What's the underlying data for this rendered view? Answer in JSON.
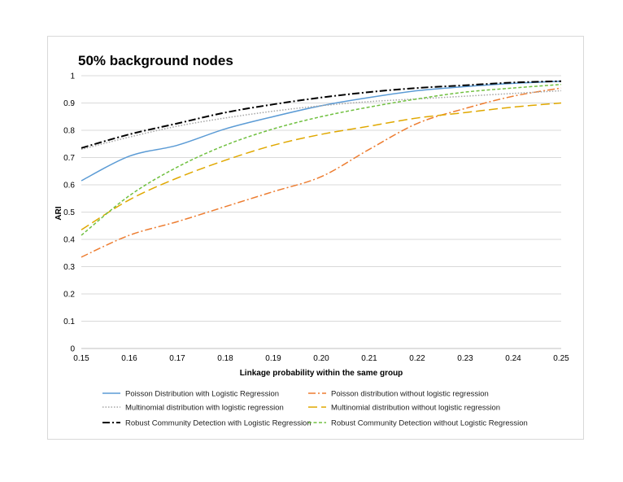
{
  "chart_data": {
    "type": "line",
    "title": "50% background nodes",
    "xlabel": "Linkage probability within the same group",
    "ylabel": "ARI",
    "xlim": [
      0.15,
      0.25
    ],
    "ylim": [
      0,
      1
    ],
    "x": [
      0.15,
      0.16,
      0.17,
      0.18,
      0.19,
      0.2,
      0.21,
      0.22,
      0.23,
      0.24,
      0.25
    ],
    "xticks": [
      "0.15",
      "0.16",
      "0.17",
      "0.18",
      "0.19",
      "0.20",
      "0.21",
      "0.22",
      "0.23",
      "0.24",
      "0.25"
    ],
    "yticks": [
      "0",
      "0.1",
      "0.2",
      "0.3",
      "0.4",
      "0.5",
      "0.6",
      "0.7",
      "0.8",
      "0.9",
      "1"
    ],
    "grid": true,
    "legend_position": "bottom",
    "series": [
      {
        "name": "Poisson Distribution with Logistic Regression",
        "color": "#5b9bd5",
        "dash": "solid",
        "values": [
          0.615,
          0.705,
          0.745,
          0.805,
          0.85,
          0.89,
          0.92,
          0.945,
          0.96,
          0.972,
          0.98
        ]
      },
      {
        "name": "Poisson distribution without logistic regression",
        "color": "#ed7d31",
        "dash": "dashdot",
        "values": [
          0.335,
          0.415,
          0.465,
          0.52,
          0.575,
          0.63,
          0.73,
          0.825,
          0.88,
          0.925,
          0.955
        ]
      },
      {
        "name": "Multinomial distribution with logistic regression",
        "color": "#a5a5a5",
        "dash": "dotted",
        "values": [
          0.73,
          0.775,
          0.815,
          0.845,
          0.87,
          0.89,
          0.905,
          0.915,
          0.925,
          0.935,
          0.945
        ]
      },
      {
        "name": "Multinomial distribution without logistic regression",
        "color": "#e0a800",
        "dash": "longdash",
        "values": [
          0.435,
          0.545,
          0.625,
          0.69,
          0.745,
          0.785,
          0.815,
          0.845,
          0.865,
          0.885,
          0.9
        ]
      },
      {
        "name": "Robust Community Detection with Logistic Regression",
        "color": "#000000",
        "dash": "dashdot",
        "values": [
          0.735,
          0.785,
          0.825,
          0.865,
          0.895,
          0.92,
          0.94,
          0.955,
          0.965,
          0.975,
          0.98
        ]
      },
      {
        "name": "Robust Community Detection without Logistic Regression",
        "color": "#70c040",
        "dash": "shortdash",
        "values": [
          0.415,
          0.56,
          0.665,
          0.745,
          0.805,
          0.85,
          0.885,
          0.915,
          0.94,
          0.955,
          0.968
        ]
      }
    ]
  }
}
